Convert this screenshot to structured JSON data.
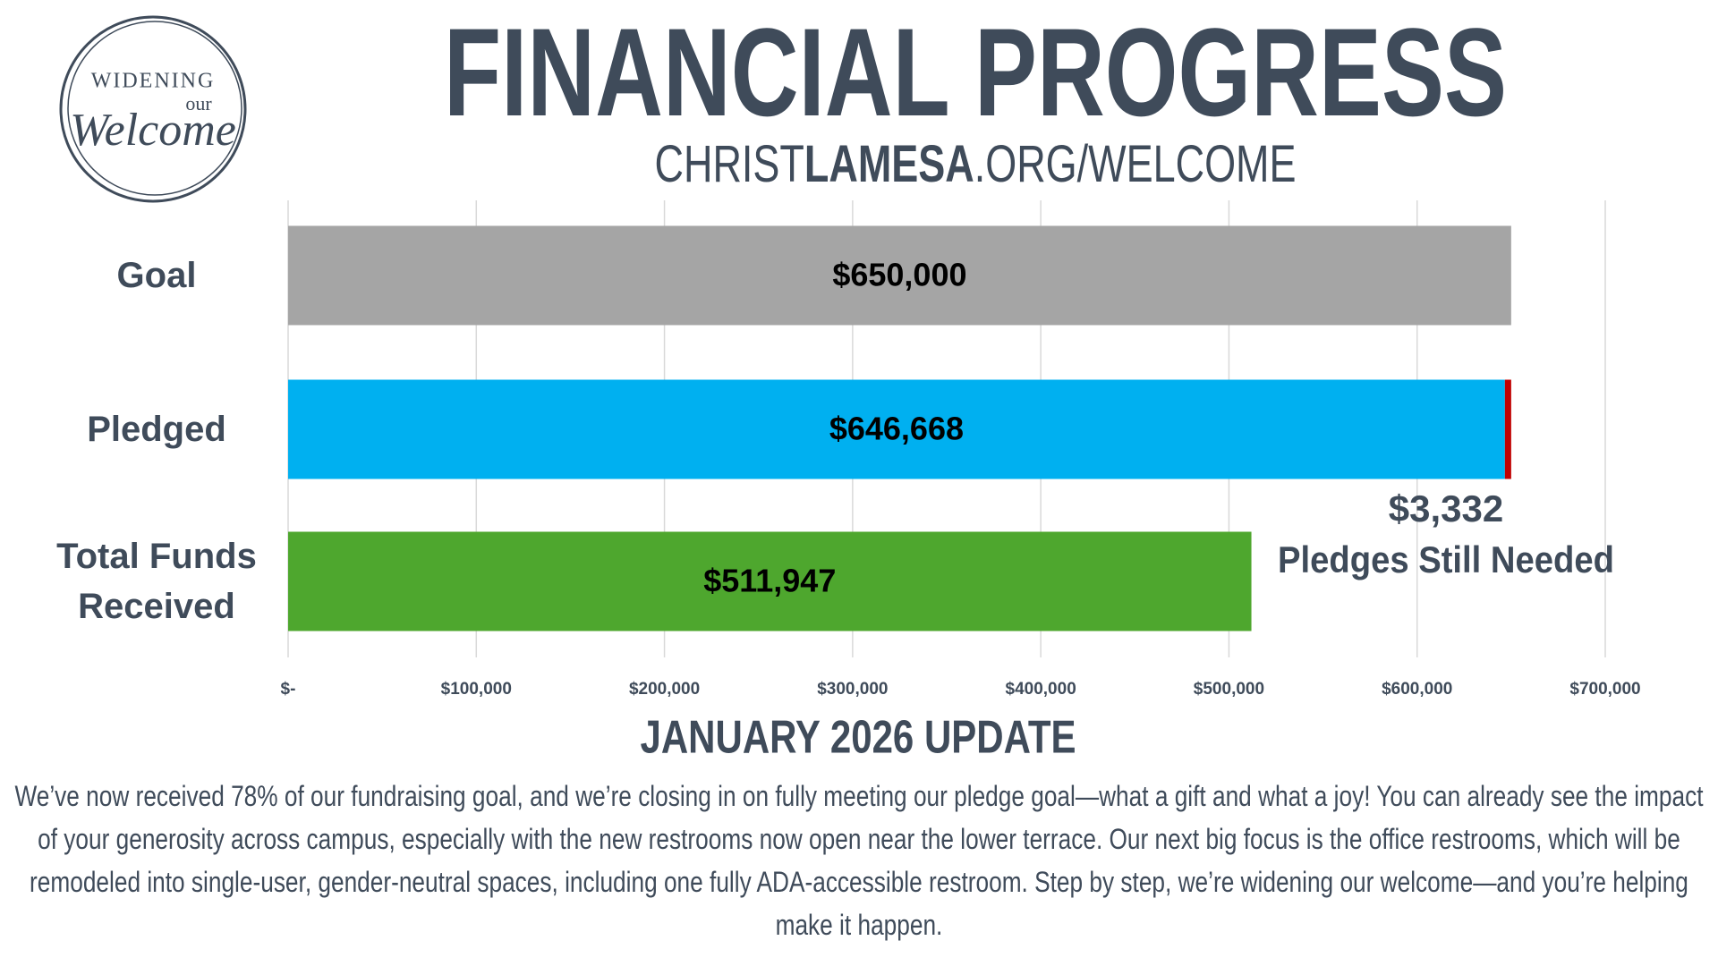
{
  "logo": {
    "lines": [
      "WIDENING",
      "our",
      "Welcome"
    ]
  },
  "chart_data": {
    "type": "hbar",
    "title": "FINANCIAL PROGRESS",
    "subtitle": [
      "CHRIST",
      "LAMESA",
      ".ORG/WELCOME"
    ],
    "categories": [
      "Goal",
      "Pledged",
      "Total Funds Received"
    ],
    "series": [
      {
        "colors": [
          "#a5a5a5",
          "#00b0f0",
          "#4ea72e"
        ],
        "values": [
          650000,
          646668,
          511947
        ],
        "value_labels": [
          "$650,000",
          "$646,668",
          "$511,947"
        ]
      },
      {
        "name": "Pledges Still Needed",
        "color": "#c00000",
        "values": [
          null,
          3332,
          null
        ],
        "value_labels": [
          null,
          "$3,332",
          null
        ]
      }
    ],
    "xlim": [
      0,
      700000
    ],
    "xticks": [
      {
        "value": 0,
        "label": "$-"
      },
      {
        "value": 100000,
        "label": "$100,000"
      },
      {
        "value": 200000,
        "label": "$200,000"
      },
      {
        "value": 300000,
        "label": "$300,000"
      },
      {
        "value": 400000,
        "label": "$400,000"
      },
      {
        "value": 500000,
        "label": "$500,000"
      },
      {
        "value": 600000,
        "label": "$600,000"
      },
      {
        "value": 700000,
        "label": "$700,000"
      }
    ],
    "grid": true
  },
  "footer": {
    "heading": "JANUARY 2026 UPDATE",
    "text": "We’ve now received 78% of our fundraising goal, and we’re closing in on fully meeting our pledge goal—what a gift and what a joy! You can already see the impact of your generosity across campus, especially with the new restrooms now open near the lower terrace. Our next big focus is the office restrooms, which will be remodeled into single-user, gender-neutral spaces, including one fully ADA-accessible restroom. Step by step, we’re widening our welcome—and you’re helping make it happen."
  }
}
